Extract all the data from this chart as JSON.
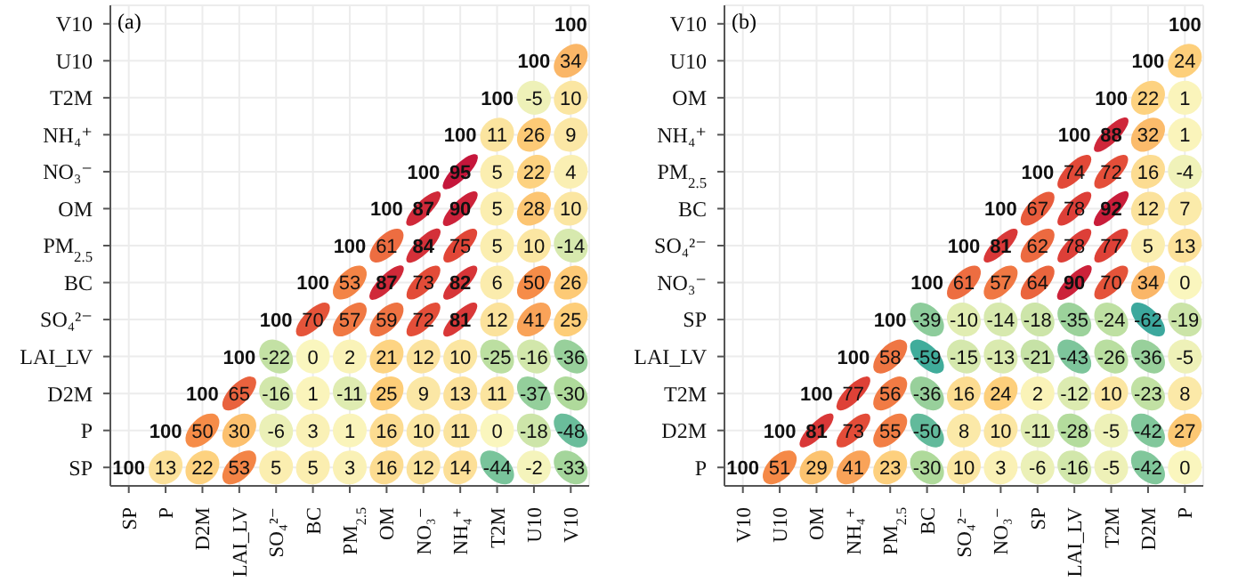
{
  "chart_data": [
    {
      "type": "heatmap",
      "title": "(a)",
      "grid": true,
      "data_labels": true,
      "categories": [
        "SP",
        "P",
        "D2M",
        "LAI_LV",
        "SO₄²⁻",
        "BC",
        "PM$_{2.5}$",
        "OM",
        "NO₃⁻",
        "NH₄⁺",
        "T2M",
        "U10",
        "V10"
      ],
      "y_categories": [
        "V10",
        "U10",
        "T2M",
        "NH₄⁺",
        "NO₃⁻",
        "OM",
        "PM$_{2.5}$",
        "BC",
        "SO₄²⁻",
        "LAI_LV",
        "D2M",
        "P",
        "SP"
      ],
      "cells": [
        [
          null,
          null,
          null,
          null,
          null,
          null,
          null,
          null,
          null,
          null,
          null,
          null,
          100
        ],
        [
          null,
          null,
          null,
          null,
          null,
          null,
          null,
          null,
          null,
          null,
          null,
          100,
          34
        ],
        [
          null,
          null,
          null,
          null,
          null,
          null,
          null,
          null,
          null,
          null,
          100,
          -5,
          10
        ],
        [
          null,
          null,
          null,
          null,
          null,
          null,
          null,
          null,
          null,
          100,
          11,
          26,
          9
        ],
        [
          null,
          null,
          null,
          null,
          null,
          null,
          null,
          null,
          100,
          95,
          5,
          22,
          4
        ],
        [
          null,
          null,
          null,
          null,
          null,
          null,
          null,
          100,
          87,
          90,
          5,
          28,
          10
        ],
        [
          null,
          null,
          null,
          null,
          null,
          null,
          100,
          61,
          84,
          75,
          5,
          10,
          -14
        ],
        [
          null,
          null,
          null,
          null,
          null,
          100,
          53,
          87,
          73,
          82,
          6,
          50,
          26
        ],
        [
          null,
          null,
          null,
          null,
          100,
          70,
          57,
          59,
          72,
          81,
          12,
          41,
          25
        ],
        [
          null,
          null,
          null,
          100,
          -22,
          0,
          2,
          21,
          12,
          10,
          -25,
          -16,
          -36
        ],
        [
          null,
          null,
          100,
          65,
          -16,
          1,
          -11,
          25,
          9,
          13,
          11,
          -37,
          -30
        ],
        [
          null,
          100,
          50,
          30,
          -6,
          3,
          1,
          16,
          10,
          11,
          0,
          -18,
          -48
        ],
        [
          100,
          13,
          22,
          53,
          5,
          5,
          3,
          16,
          12,
          14,
          -44,
          -2,
          -33
        ]
      ]
    },
    {
      "type": "heatmap",
      "title": "(b)",
      "grid": true,
      "data_labels": true,
      "categories": [
        "V10",
        "U10",
        "OM",
        "NH₄⁺",
        "PM$_{2.5}$",
        "BC",
        "SO₄²⁻",
        "NO₃⁻",
        "SP",
        "LAI_LV",
        "T2M",
        "D2M",
        "P"
      ],
      "y_categories": [
        "V10",
        "U10",
        "OM",
        "NH₄⁺",
        "PM$_{2.5}$",
        "BC",
        "SO₄²⁻",
        "NO₃⁻",
        "SP",
        "LAI_LV",
        "T2M",
        "D2M",
        "P"
      ],
      "cells": [
        [
          null,
          null,
          null,
          null,
          null,
          null,
          null,
          null,
          null,
          null,
          null,
          null,
          100
        ],
        [
          null,
          null,
          null,
          null,
          null,
          null,
          null,
          null,
          null,
          null,
          null,
          100,
          24
        ],
        [
          null,
          null,
          null,
          null,
          null,
          null,
          null,
          null,
          null,
          null,
          100,
          22,
          1
        ],
        [
          null,
          null,
          null,
          null,
          null,
          null,
          null,
          null,
          null,
          100,
          88,
          32,
          1
        ],
        [
          null,
          null,
          null,
          null,
          null,
          null,
          null,
          null,
          100,
          74,
          72,
          16,
          -4
        ],
        [
          null,
          null,
          null,
          null,
          null,
          null,
          null,
          100,
          67,
          78,
          92,
          12,
          7
        ],
        [
          null,
          null,
          null,
          null,
          null,
          null,
          100,
          81,
          62,
          78,
          77,
          5,
          13
        ],
        [
          null,
          null,
          null,
          null,
          null,
          100,
          61,
          57,
          64,
          90,
          70,
          34,
          0
        ],
        [
          null,
          null,
          null,
          null,
          100,
          -39,
          -10,
          -14,
          -18,
          -35,
          -24,
          -62,
          -19
        ],
        [
          null,
          null,
          null,
          100,
          58,
          -59,
          -15,
          -13,
          -21,
          -43,
          -26,
          -36,
          -5
        ],
        [
          null,
          null,
          100,
          77,
          56,
          -36,
          16,
          24,
          2,
          -12,
          10,
          -23,
          8
        ],
        [
          null,
          100,
          81,
          73,
          55,
          -50,
          8,
          10,
          -11,
          -28,
          -5,
          -42,
          27
        ],
        [
          100,
          51,
          29,
          41,
          23,
          -30,
          10,
          3,
          -6,
          -16,
          -5,
          -42,
          0
        ]
      ]
    }
  ]
}
